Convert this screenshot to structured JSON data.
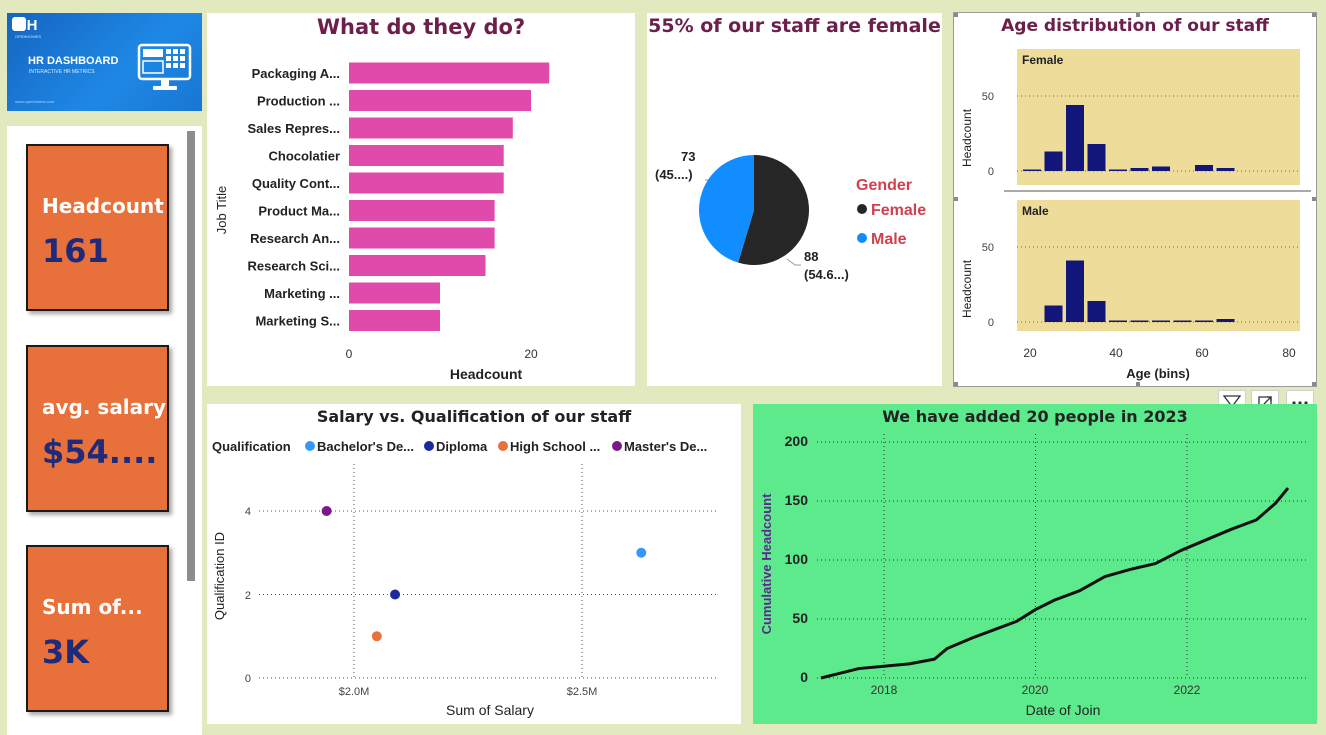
{
  "banner": {
    "logo_text": "OH",
    "logo_sub": "OPENHOMES",
    "title": "HR DASHBOARD",
    "subtitle": "INTERACTIVE HR METRICS",
    "footer": "www.openhomes.com",
    "icon": "monitor-calculator-icon"
  },
  "kpis": {
    "headcount_label": "Headcount",
    "headcount_value": "161",
    "salary_label": "avg. salary",
    "salary_value": "$54....",
    "sum_label": "Sum of...",
    "sum_value": "3K"
  },
  "job_chart": {
    "title": "What do they do?",
    "ylabel": "Job Title",
    "xlabel": "Headcount",
    "tick_0": "0",
    "tick_20": "20"
  },
  "gender_chart": {
    "title": "55% of our staff are female",
    "legend_title": "Gender",
    "female_label": "Female",
    "male_label": "Male",
    "male_count": "73",
    "male_pct": "(45....)",
    "female_count": "88",
    "female_pct": "(54.6...)"
  },
  "age_chart": {
    "title": "Age distribution of our staff",
    "female_panel": "Female",
    "male_panel": "Male",
    "ylabel": "Headcount",
    "xlabel": "Age (bins)",
    "ytick_50": "50",
    "ytick_0": "0",
    "xticks": [
      "20",
      "40",
      "60",
      "80"
    ]
  },
  "scatter_chart": {
    "title": "Salary vs. Qualification of our staff",
    "legend_title": "Qualification",
    "legend": [
      "Bachelor's De...",
      "Diploma",
      "High School ...",
      "Master's De..."
    ],
    "ylabel": "Qualification ID",
    "xlabel": "Sum of Salary",
    "yticks": [
      "4",
      "2",
      "0"
    ],
    "xticks": [
      "$2.0M",
      "$2.5M"
    ]
  },
  "line_chart": {
    "title": "We have added 20 people in 2023",
    "ylabel": "Cumulative Headcount",
    "xlabel": "Date of Join",
    "yticks": [
      "200",
      "150",
      "100",
      "50",
      "0"
    ],
    "xticks": [
      "2018",
      "2020",
      "2022"
    ]
  },
  "toolbar": {
    "filter_icon": "filter-icon",
    "focus_icon": "focus-mode-icon",
    "more_icon": "more-options-icon"
  },
  "colors": {
    "background": "#e3e9bf",
    "kpi_card": "#e8703a",
    "kpi_value": "#1f2a7a",
    "bar": "#e04aaa",
    "female": "#262626",
    "male": "#118dff",
    "age_bar": "#12167a",
    "age_plot_bg": "#eedc9b",
    "line_panel": "#5dea8c",
    "title": "#6b1f4a"
  },
  "chart_data": [
    {
      "type": "bar",
      "title": "What do they do?",
      "orientation": "horizontal",
      "categories": [
        "Packaging A...",
        "Production ...",
        "Sales Repres...",
        "Chocolatier",
        "Quality Cont...",
        "Product Ma...",
        "Research An...",
        "Research Sci...",
        "Marketing ...",
        "Marketing S..."
      ],
      "values": [
        22,
        20,
        18,
        17,
        17,
        16,
        16,
        15,
        10,
        10
      ],
      "xlabel": "Headcount",
      "ylabel": "Job Title",
      "xlim": [
        0,
        25
      ]
    },
    {
      "type": "pie",
      "title": "55% of our staff are female",
      "labels": [
        "Female",
        "Male"
      ],
      "values": [
        88,
        73
      ],
      "data_labels": [
        "88 (54.6...)",
        "73 (45....)"
      ],
      "legend_title": "Gender",
      "legend_position": "right"
    },
    {
      "type": "bar",
      "title": "Age distribution of our staff",
      "facet": "Female",
      "x": [
        20,
        25,
        30,
        35,
        40,
        45,
        50,
        55,
        60,
        65
      ],
      "values": [
        1,
        13,
        44,
        18,
        1,
        2,
        3,
        0,
        4,
        2
      ],
      "xlabel": "Age (bins)",
      "ylabel": "Headcount",
      "xlim": [
        15,
        85
      ],
      "ylim": [
        0,
        70
      ]
    },
    {
      "type": "bar",
      "title": "Age distribution of our staff",
      "facet": "Male",
      "x": [
        25,
        30,
        35,
        40,
        45,
        50,
        55,
        60,
        65
      ],
      "values": [
        11,
        41,
        14,
        1,
        1,
        1,
        1,
        1,
        2
      ],
      "xlabel": "Age (bins)",
      "ylabel": "Headcount",
      "xlim": [
        15,
        85
      ],
      "ylim": [
        0,
        70
      ]
    },
    {
      "type": "scatter",
      "title": "Salary vs. Qualification of our staff",
      "series": [
        {
          "name": "Bachelor's De...",
          "x": [
            2630000
          ],
          "y": [
            3
          ],
          "color": "#3399ff"
        },
        {
          "name": "Diploma",
          "x": [
            2090000
          ],
          "y": [
            2
          ],
          "color": "#1c2a9c"
        },
        {
          "name": "High School ...",
          "x": [
            2050000
          ],
          "y": [
            1
          ],
          "color": "#e8703a"
        },
        {
          "name": "Master's De...",
          "x": [
            1940000
          ],
          "y": [
            4
          ],
          "color": "#7a1a8a"
        }
      ],
      "xlabel": "Sum of Salary",
      "ylabel": "Qualification ID",
      "xlim": [
        1760000,
        2800000
      ],
      "ylim": [
        0,
        4.8
      ],
      "grid": true
    },
    {
      "type": "line",
      "title": "We have added 20 people in 2023",
      "x": [
        "2017-03",
        "2017-06",
        "2017-09",
        "2018-01",
        "2018-05",
        "2018-09",
        "2018-11",
        "2019-03",
        "2019-06",
        "2019-10",
        "2020-01",
        "2020-04",
        "2020-08",
        "2020-12",
        "2021-04",
        "2021-08",
        "2021-12",
        "2022-04",
        "2022-08",
        "2022-12",
        "2023-03",
        "2023-05"
      ],
      "values": [
        0,
        4,
        8,
        10,
        12,
        16,
        25,
        34,
        40,
        48,
        58,
        66,
        74,
        86,
        92,
        97,
        108,
        117,
        126,
        134,
        148,
        161
      ],
      "xlabel": "Date of Join",
      "ylabel": "Cumulative Headcount",
      "ylim": [
        0,
        210
      ],
      "grid": true
    }
  ]
}
